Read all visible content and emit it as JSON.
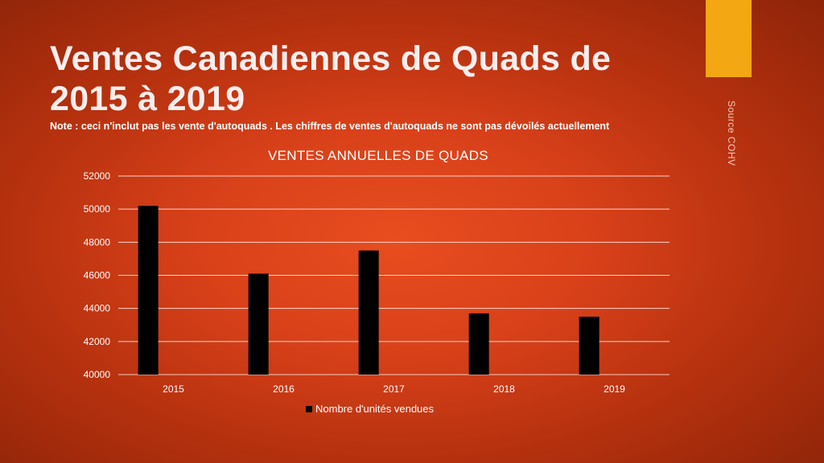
{
  "slide": {
    "title": "Ventes Canadiennes de Quads de 2015 à 2019",
    "note": "Note : ceci n'inclut pas les vente d'autoquads . Les chiffres de ventes d'autoquads ne sont pas dévoilés actuellement",
    "source": "Source COHV",
    "accent_color": "#f3a712"
  },
  "chart_data": {
    "type": "bar",
    "title": "VENTES ANNUELLES DE QUADS",
    "categories": [
      "2015",
      "2016",
      "2017",
      "2018",
      "2019"
    ],
    "series": [
      {
        "name": "Nombre d'unités vendues",
        "values": [
          50200,
          46100,
          47500,
          43700,
          43500
        ],
        "color": "#000000"
      }
    ],
    "ylim": [
      40000,
      52000
    ],
    "yticks": [
      "40000",
      "42000",
      "44000",
      "46000",
      "48000",
      "50000",
      "52000"
    ],
    "grid": true,
    "legend_position": "bottom",
    "xlabel": "",
    "ylabel": ""
  }
}
